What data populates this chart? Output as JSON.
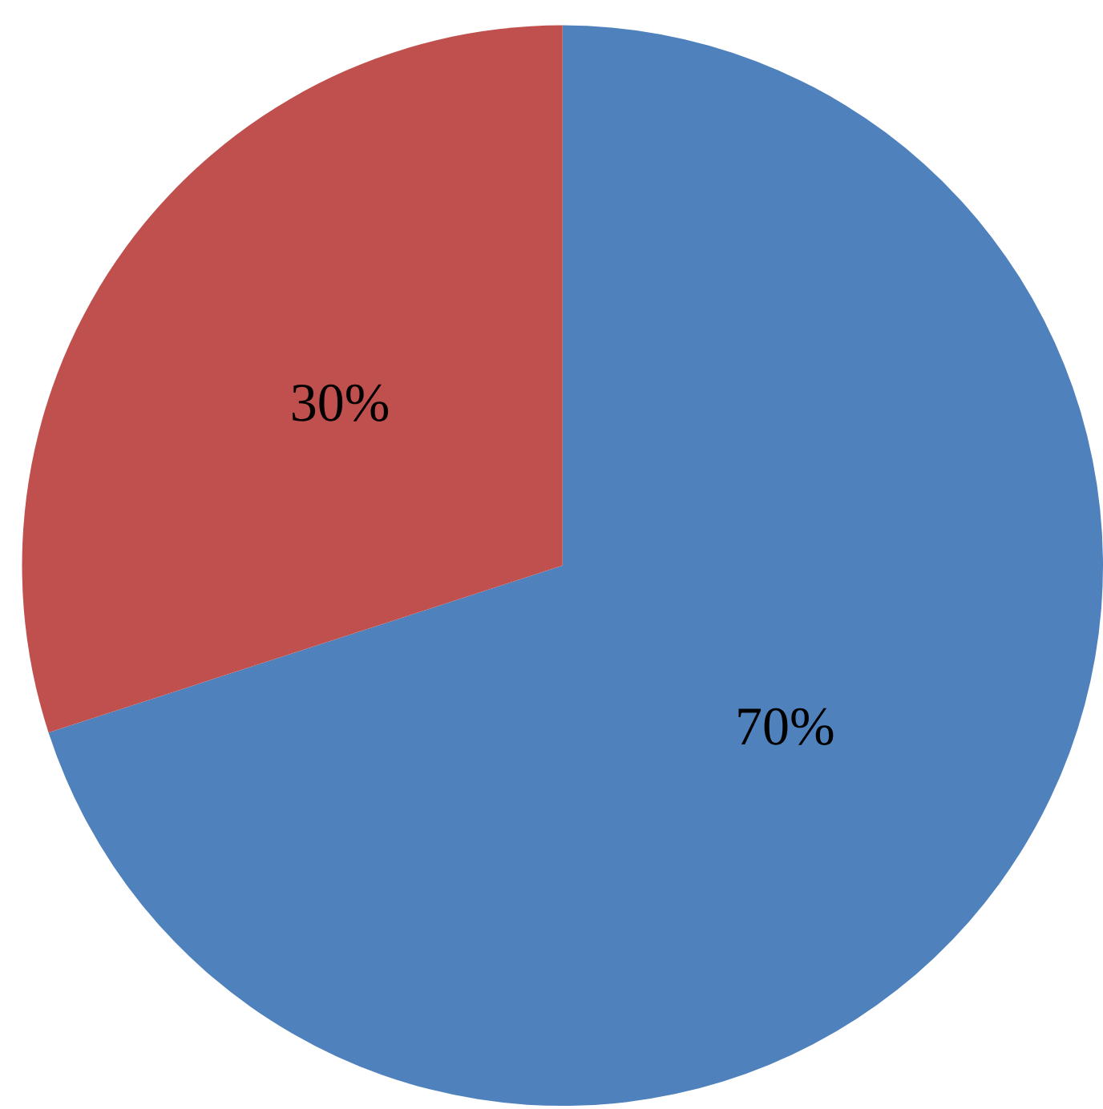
{
  "chart_data": {
    "type": "pie",
    "categories": [
      null,
      null
    ],
    "values": [
      70,
      30
    ],
    "colors": [
      "#4f81bd",
      "#c0504d"
    ],
    "value_labels": [
      "70%",
      "30%"
    ]
  }
}
